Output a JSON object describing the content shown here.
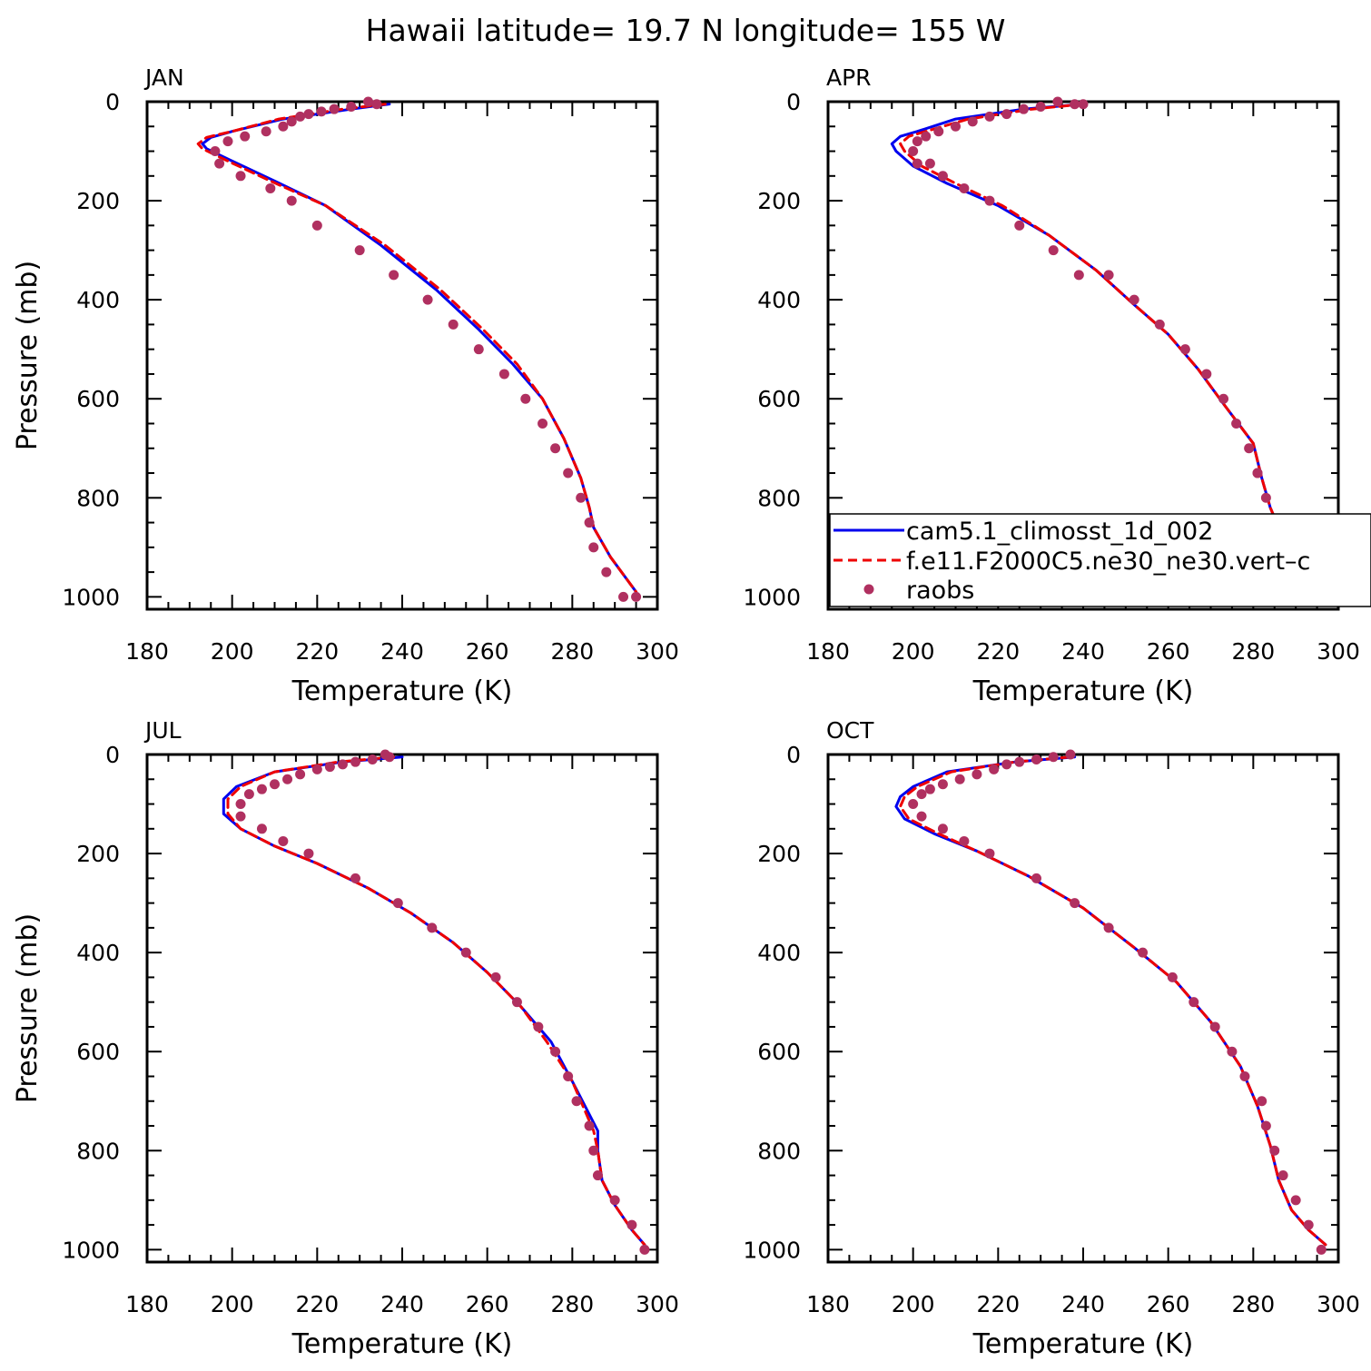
{
  "title": "Hawaii  latitude= 19.7 N longitude= 155 W",
  "colors": {
    "cam": "#0000ee",
    "f": "#ee0000",
    "raobs": "#b03060"
  },
  "legend": {
    "placement": "APR panel, lower left, extending past right edge",
    "entries": [
      "cam5.1_climosst_1d_002",
      "f.e11.F2000C5.ne30_ne30.vert–c",
      "raobs"
    ]
  },
  "chart_data": [
    {
      "type": "line",
      "panel": "JAN",
      "xlabel": "Temperature (K)",
      "ylabel": "Pressure (mb)",
      "xlim": [
        180,
        300
      ],
      "ylim": [
        0,
        1025
      ],
      "y_reversed": true,
      "xticks": [
        "180",
        "200",
        "220",
        "240",
        "260",
        "280",
        "300"
      ],
      "yticks": [
        "0",
        "200",
        "400",
        "600",
        "800",
        "1000"
      ],
      "series": [
        {
          "name": "cam5.1_climosst_1d_002",
          "style": "solid",
          "x": [
            237,
            228,
            212,
            200,
            195,
            193,
            194,
            200,
            210,
            222,
            235,
            248,
            258,
            266,
            273,
            278,
            282,
            284,
            285,
            289,
            295
          ],
          "y": [
            5,
            15,
            35,
            60,
            72,
            85,
            95,
            120,
            160,
            210,
            290,
            380,
            460,
            530,
            600,
            680,
            760,
            820,
            860,
            920,
            990
          ]
        },
        {
          "name": "f.e11.F2000C5.ne30_ne30.vert–c",
          "style": "dashed",
          "x": [
            236,
            226,
            211,
            200,
            194,
            192,
            193,
            199,
            209,
            222,
            236,
            249,
            259,
            267,
            273,
            278,
            282,
            284,
            285,
            289,
            295
          ],
          "y": [
            5,
            15,
            35,
            60,
            72,
            85,
            95,
            120,
            160,
            210,
            290,
            380,
            460,
            530,
            600,
            680,
            760,
            820,
            860,
            920,
            990
          ]
        },
        {
          "name": "raobs",
          "style": "markers",
          "x": [
            232,
            234,
            228,
            224,
            221,
            218,
            216,
            214,
            212,
            208,
            203,
            199,
            196,
            197,
            202,
            209,
            214,
            220,
            230,
            238,
            246,
            252,
            258,
            264,
            269,
            273,
            276,
            279,
            282,
            284,
            285,
            288,
            292,
            295
          ],
          "y": [
            0,
            5,
            10,
            15,
            20,
            25,
            30,
            40,
            50,
            60,
            70,
            80,
            100,
            125,
            150,
            175,
            200,
            250,
            300,
            350,
            400,
            450,
            500,
            550,
            600,
            650,
            700,
            750,
            800,
            850,
            900,
            950,
            1000,
            1000
          ]
        }
      ]
    },
    {
      "type": "line",
      "panel": "APR",
      "xlabel": "Temperature (K)",
      "ylabel": "",
      "xlim": [
        180,
        300
      ],
      "ylim": [
        0,
        1025
      ],
      "y_reversed": true,
      "xticks": [
        "180",
        "200",
        "220",
        "240",
        "260",
        "280",
        "300"
      ],
      "yticks": [
        "0",
        "200",
        "400",
        "600",
        "800",
        "1000"
      ],
      "series": [
        {
          "name": "cam5.1_climosst_1d_002",
          "style": "solid",
          "x": [
            240,
            226,
            210,
            201,
            197,
            195,
            196,
            200,
            208,
            220,
            232,
            243,
            252,
            260,
            267,
            273,
            280,
            282,
            284,
            287,
            291,
            295
          ],
          "y": [
            5,
            15,
            35,
            60,
            70,
            85,
            100,
            130,
            165,
            210,
            270,
            340,
            410,
            470,
            540,
            610,
            690,
            760,
            820,
            880,
            940,
            990
          ]
        },
        {
          "name": "f.e11.F2000C5.ne30_ne30.vert–c",
          "style": "dashed",
          "x": [
            240,
            228,
            213,
            203,
            199,
            197,
            198,
            202,
            210,
            221,
            232,
            243,
            252,
            260,
            267,
            273,
            280,
            282,
            284,
            287,
            291,
            295
          ],
          "y": [
            5,
            15,
            35,
            60,
            70,
            85,
            100,
            130,
            165,
            210,
            270,
            340,
            410,
            470,
            540,
            610,
            690,
            760,
            820,
            880,
            940,
            990
          ]
        },
        {
          "name": "raobs",
          "style": "markers",
          "x": [
            234,
            238,
            240,
            230,
            226,
            222,
            218,
            214,
            210,
            206,
            203,
            201,
            200,
            201,
            204,
            207,
            212,
            218,
            225,
            233,
            239,
            246,
            252,
            258,
            264,
            269,
            273,
            276,
            279,
            281,
            281,
            283,
            285,
            287,
            291,
            295
          ],
          "y": [
            0,
            5,
            5,
            10,
            15,
            25,
            30,
            40,
            50,
            60,
            70,
            80,
            100,
            125,
            125,
            150,
            175,
            200,
            250,
            300,
            350,
            350,
            400,
            450,
            500,
            550,
            600,
            650,
            700,
            750,
            750,
            800,
            850,
            900,
            950,
            1000
          ]
        }
      ]
    },
    {
      "type": "line",
      "panel": "JUL",
      "xlabel": "Temperature (K)",
      "ylabel": "Pressure (mb)",
      "xlim": [
        180,
        300
      ],
      "ylim": [
        0,
        1025
      ],
      "y_reversed": true,
      "xticks": [
        "180",
        "200",
        "220",
        "240",
        "260",
        "280",
        "300"
      ],
      "yticks": [
        "0",
        "200",
        "400",
        "600",
        "800",
        "1000"
      ],
      "series": [
        {
          "name": "cam5.1_climosst_1d_002",
          "style": "solid",
          "x": [
            240,
            226,
            210,
            201,
            198,
            198,
            202,
            210,
            220,
            232,
            242,
            252,
            260,
            268,
            275,
            280,
            286,
            286,
            287,
            290,
            294,
            297
          ],
          "y": [
            5,
            15,
            35,
            65,
            90,
            120,
            150,
            185,
            220,
            270,
            320,
            380,
            440,
            510,
            580,
            660,
            760,
            800,
            860,
            910,
            960,
            990
          ]
        },
        {
          "name": "f.e11.F2000C5.ne30_ne30.vert–c",
          "style": "dashed",
          "x": [
            238,
            225,
            210,
            202,
            199,
            199,
            202,
            210,
            220,
            232,
            242,
            252,
            260,
            268,
            274,
            280,
            285,
            286,
            287,
            290,
            294,
            297
          ],
          "y": [
            5,
            15,
            35,
            65,
            90,
            120,
            150,
            185,
            220,
            270,
            320,
            380,
            440,
            510,
            580,
            660,
            760,
            800,
            860,
            910,
            960,
            990
          ]
        },
        {
          "name": "raobs",
          "style": "markers",
          "x": [
            236,
            237,
            233,
            229,
            226,
            223,
            220,
            216,
            213,
            210,
            207,
            204,
            202,
            202,
            207,
            212,
            218,
            229,
            239,
            247,
            255,
            262,
            267,
            272,
            276,
            279,
            281,
            284,
            285,
            286,
            290,
            294,
            297
          ],
          "y": [
            0,
            5,
            10,
            15,
            20,
            25,
            30,
            40,
            50,
            60,
            70,
            80,
            100,
            125,
            150,
            175,
            200,
            250,
            300,
            350,
            400,
            450,
            500,
            550,
            600,
            650,
            700,
            750,
            800,
            850,
            900,
            950,
            1000
          ]
        }
      ]
    },
    {
      "type": "line",
      "panel": "OCT",
      "xlabel": "Temperature (K)",
      "ylabel": "",
      "xlim": [
        180,
        300
      ],
      "ylim": [
        0,
        1025
      ],
      "y_reversed": true,
      "xticks": [
        "180",
        "200",
        "220",
        "240",
        "260",
        "280",
        "300"
      ],
      "yticks": [
        "0",
        "200",
        "400",
        "600",
        "800",
        "1000"
      ],
      "series": [
        {
          "name": "cam5.1_climosst_1d_002",
          "style": "solid",
          "x": [
            238,
            224,
            208,
            200,
            197,
            196,
            198,
            205,
            215,
            227,
            240,
            252,
            262,
            270,
            277,
            281,
            284,
            286,
            289,
            293,
            297
          ],
          "y": [
            5,
            15,
            35,
            65,
            85,
            105,
            130,
            160,
            195,
            245,
            310,
            390,
            460,
            540,
            630,
            710,
            790,
            860,
            920,
            960,
            990
          ]
        },
        {
          "name": "f.e11.F2000C5.ne30_ne30.vert–c",
          "style": "dashed",
          "x": [
            237,
            224,
            209,
            201,
            198,
            197,
            199,
            206,
            215,
            227,
            240,
            252,
            262,
            270,
            277,
            281,
            284,
            286,
            289,
            293,
            297
          ],
          "y": [
            5,
            15,
            35,
            65,
            85,
            105,
            130,
            160,
            195,
            245,
            310,
            390,
            460,
            540,
            630,
            710,
            790,
            860,
            920,
            960,
            990
          ]
        },
        {
          "name": "raobs",
          "style": "markers",
          "x": [
            237,
            233,
            229,
            225,
            222,
            219,
            215,
            211,
            207,
            204,
            202,
            200,
            202,
            207,
            212,
            218,
            229,
            238,
            246,
            254,
            261,
            266,
            271,
            275,
            278,
            282,
            283,
            285,
            287,
            290,
            293,
            296
          ],
          "y": [
            0,
            5,
            10,
            15,
            20,
            30,
            40,
            50,
            60,
            70,
            80,
            100,
            125,
            150,
            175,
            200,
            250,
            300,
            350,
            400,
            450,
            500,
            550,
            600,
            650,
            700,
            750,
            800,
            850,
            900,
            950,
            1000
          ]
        }
      ]
    }
  ]
}
